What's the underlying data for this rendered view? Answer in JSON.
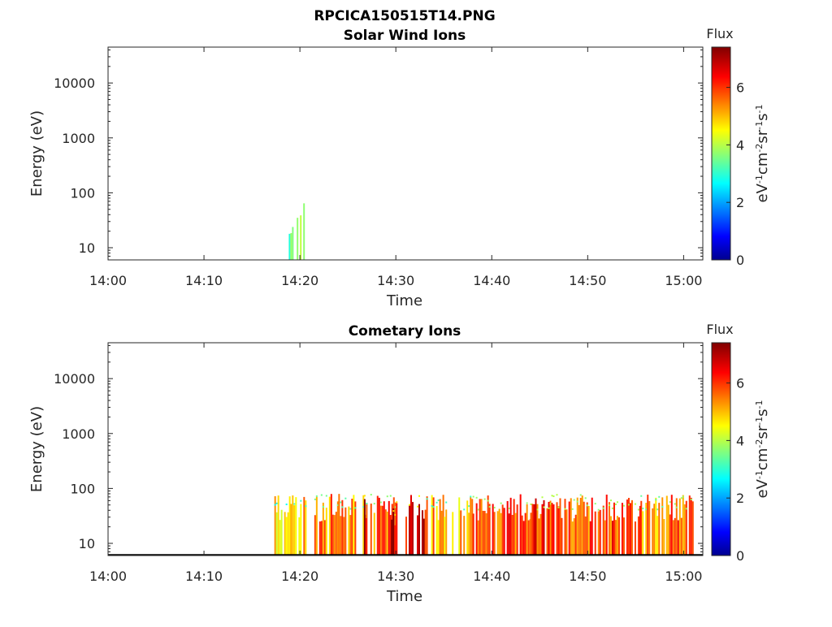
{
  "figure_title": "RPCICA150515T14.PNG",
  "chart_data": [
    {
      "type": "heatmap",
      "title": "Solar Wind Ions",
      "xlabel": "Time",
      "ylabel": "Energy (eV)",
      "yscale": "log",
      "xlim": [
        "14:00",
        "15:02"
      ],
      "ylim": [
        6,
        45000
      ],
      "x_ticks": [
        "14:00",
        "14:10",
        "14:20",
        "14:30",
        "14:40",
        "14:50",
        "15:00"
      ],
      "y_ticks": [
        "10",
        "100",
        "1000",
        "10000"
      ],
      "colorbar": {
        "label": "Flux",
        "units": "eV-1cm-2sr-1s-1",
        "range": [
          0,
          7.4
        ],
        "ticks": [
          "0",
          "2",
          "4",
          "6"
        ],
        "colormap": "jet"
      },
      "activity": [
        {
          "start": "14:18:40",
          "end": "14:19:15",
          "emin": 6,
          "emax": 30,
          "level": 3.5
        },
        {
          "start": "14:19:40",
          "end": "14:20:30",
          "emin": 6,
          "emax": 70,
          "level": 3.5
        }
      ]
    },
    {
      "type": "heatmap",
      "title": "Cometary Ions",
      "xlabel": "Time",
      "ylabel": "Energy (eV)",
      "yscale": "log",
      "xlim": [
        "14:00",
        "15:02"
      ],
      "ylim": [
        6,
        45000
      ],
      "x_ticks": [
        "14:00",
        "14:10",
        "14:20",
        "14:30",
        "14:40",
        "14:50",
        "15:00"
      ],
      "y_ticks": [
        "10",
        "100",
        "1000",
        "10000"
      ],
      "colorbar": {
        "label": "Flux",
        "units": "eV-1cm-2sr-1s-1",
        "range": [
          0,
          7.4
        ],
        "ticks": [
          "0",
          "2",
          "4",
          "6"
        ],
        "colormap": "jet"
      },
      "activity": [
        {
          "start": "14:17:20",
          "end": "14:19:00",
          "emin": 6,
          "emax": 80,
          "level": 4.8
        },
        {
          "start": "14:19:00",
          "end": "14:21:00",
          "emin": 6,
          "emax": 80,
          "level": 5.2
        },
        {
          "start": "14:21:30",
          "end": "14:24:00",
          "emin": 6,
          "emax": 80,
          "level": 5.6
        },
        {
          "start": "14:24:00",
          "end": "14:27:00",
          "emin": 6,
          "emax": 80,
          "level": 5.4
        },
        {
          "start": "14:26:30",
          "end": "14:27:00",
          "emin": 6,
          "emax": 80,
          "level": 6.8
        },
        {
          "start": "14:27:00",
          "end": "14:30:00",
          "emin": 6,
          "emax": 80,
          "level": 5.8
        },
        {
          "start": "14:29:30",
          "end": "14:30:10",
          "emin": 6,
          "emax": 60,
          "level": 6.9
        },
        {
          "start": "14:31:00",
          "end": "14:33:00",
          "emin": 6,
          "emax": 80,
          "level": 6.6
        },
        {
          "start": "14:33:00",
          "end": "14:35:00",
          "emin": 6,
          "emax": 80,
          "level": 5.3
        },
        {
          "start": "14:35:00",
          "end": "14:38:00",
          "emin": 6,
          "emax": 80,
          "level": 5.2
        },
        {
          "start": "14:38:00",
          "end": "14:44:00",
          "emin": 6,
          "emax": 80,
          "level": 5.9
        },
        {
          "start": "14:44:00",
          "end": "14:48:00",
          "emin": 6,
          "emax": 80,
          "level": 6.1
        },
        {
          "start": "14:48:00",
          "end": "14:52:00",
          "emin": 6,
          "emax": 80,
          "level": 5.8
        },
        {
          "start": "14:52:00",
          "end": "14:55:30",
          "emin": 6,
          "emax": 80,
          "level": 6.0
        },
        {
          "start": "14:55:30",
          "end": "14:58:00",
          "emin": 6,
          "emax": 80,
          "level": 5.5
        },
        {
          "start": "14:58:00",
          "end": "15:01:00",
          "emin": 6,
          "emax": 80,
          "level": 5.9
        }
      ]
    }
  ]
}
